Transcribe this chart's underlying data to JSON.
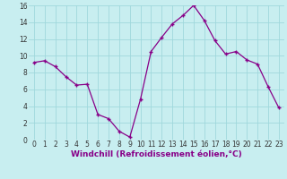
{
  "hours": [
    0,
    1,
    2,
    3,
    4,
    5,
    6,
    7,
    8,
    9,
    10,
    11,
    12,
    13,
    14,
    15,
    16,
    17,
    18,
    19,
    20,
    21,
    22,
    23
  ],
  "values": [
    9.2,
    9.4,
    8.7,
    7.5,
    6.5,
    6.6,
    3.0,
    2.5,
    1.0,
    0.3,
    4.8,
    10.5,
    12.2,
    13.8,
    14.8,
    16.0,
    14.2,
    11.8,
    10.2,
    10.5,
    9.5,
    9.0,
    6.3,
    3.8
  ],
  "line_color": "#880088",
  "marker": "+",
  "marker_color": "#880088",
  "bg_color": "#c8eef0",
  "grid_color": "#a0d8dc",
  "xlabel": "Windchill (Refroidissement éolien,°C)",
  "xlim": [
    -0.5,
    23.5
  ],
  "ylim": [
    0,
    16
  ],
  "yticks": [
    0,
    2,
    4,
    6,
    8,
    10,
    12,
    14,
    16
  ],
  "xticks": [
    0,
    1,
    2,
    3,
    4,
    5,
    6,
    7,
    8,
    9,
    10,
    11,
    12,
    13,
    14,
    15,
    16,
    17,
    18,
    19,
    20,
    21,
    22,
    23
  ],
  "tick_fontsize": 5.5,
  "xlabel_fontsize": 6.5,
  "linewidth": 0.9,
  "markersize": 3.5
}
